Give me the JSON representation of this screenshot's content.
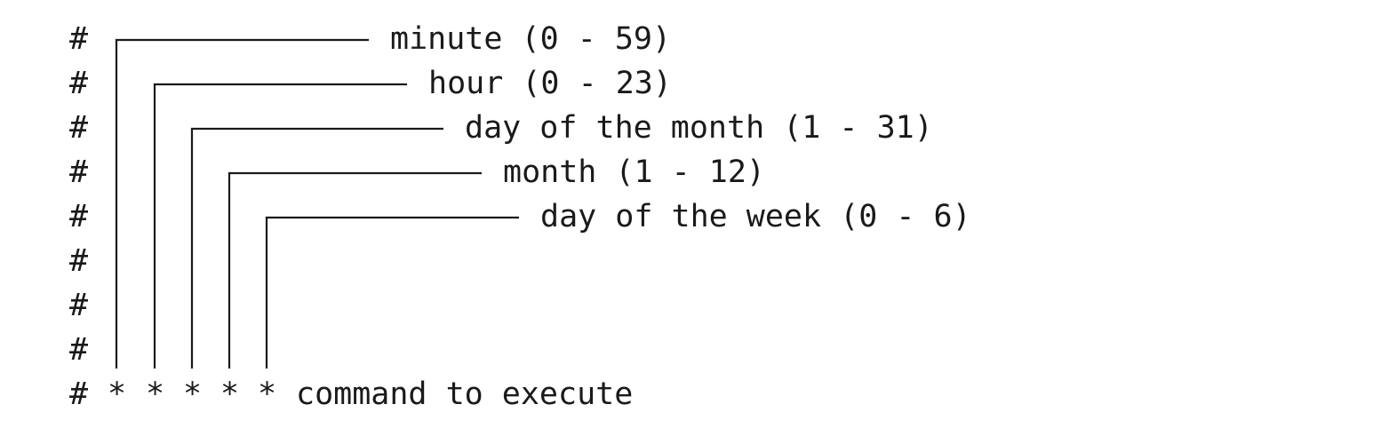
{
  "comment_char": "#",
  "field_marker": "*",
  "fields": [
    {
      "label": "minute (0 - 59)"
    },
    {
      "label": "hour (0 - 23)"
    },
    {
      "label": "day of the month (1 - 31)"
    },
    {
      "label": "month (1 - 12)"
    },
    {
      "label": "day of the week (0 - 6)"
    }
  ],
  "command_label": "command to execute",
  "colors": {
    "text": "#1a1a1a",
    "background": "#ffffff"
  }
}
